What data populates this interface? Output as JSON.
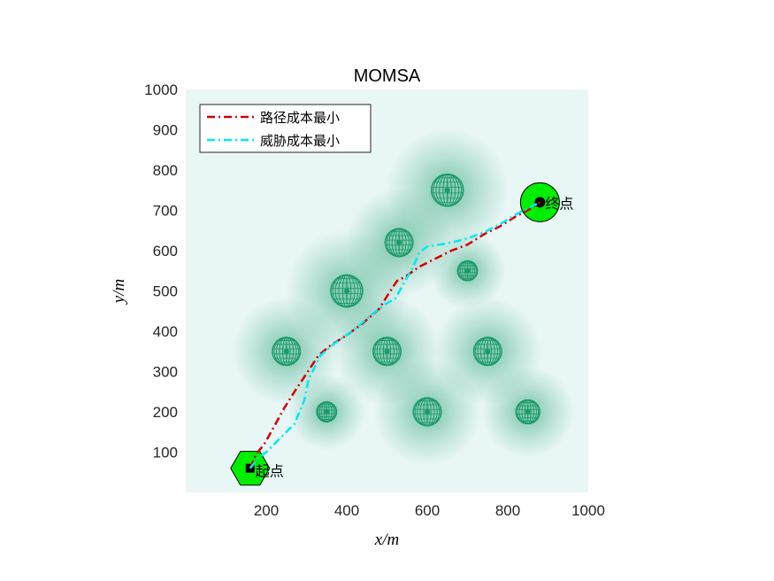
{
  "chart_data": {
    "type": "line",
    "title": "MOMSA",
    "xlabel": "x/m",
    "ylabel": "y/m",
    "xlim": [
      0,
      1000
    ],
    "ylim": [
      0,
      1000
    ],
    "xticks": [
      200,
      400,
      600,
      800,
      1000
    ],
    "yticks": [
      100,
      200,
      300,
      400,
      500,
      600,
      700,
      800,
      900,
      1000
    ],
    "legend_position": "top-left",
    "background_color": "#e8f6f6",
    "threat_color": "#1a9a68",
    "series": [
      {
        "name": "路径成本最小",
        "color": "#d40000",
        "style": "dash-dot",
        "x": [
          160,
          175,
          195,
          215,
          245,
          270,
          300,
          330,
          360,
          400,
          440,
          480,
          505,
          525,
          545,
          580,
          620,
          660,
          700,
          740,
          780,
          820,
          850,
          880
        ],
        "y": [
          60,
          95,
          120,
          155,
          210,
          250,
          295,
          340,
          365,
          390,
          420,
          455,
          495,
          525,
          535,
          560,
          580,
          600,
          615,
          640,
          660,
          685,
          700,
          720
        ]
      },
      {
        "name": "威胁成本最小",
        "color": "#00e8f0",
        "style": "dash-dot",
        "x": [
          160,
          180,
          200,
          230,
          270,
          295,
          305,
          335,
          370,
          420,
          460,
          500,
          520,
          545,
          565,
          580,
          600,
          630,
          660,
          700,
          740,
          780,
          820,
          860,
          880
        ],
        "y": [
          60,
          85,
          100,
          130,
          170,
          230,
          280,
          340,
          370,
          405,
          440,
          470,
          480,
          525,
          560,
          595,
          610,
          615,
          620,
          630,
          645,
          665,
          690,
          710,
          720
        ]
      }
    ],
    "threats": [
      {
        "x": 250,
        "y": 350,
        "r": 70
      },
      {
        "x": 350,
        "y": 200,
        "r": 50
      },
      {
        "x": 400,
        "y": 500,
        "r": 80
      },
      {
        "x": 500,
        "y": 350,
        "r": 70
      },
      {
        "x": 530,
        "y": 620,
        "r": 70
      },
      {
        "x": 600,
        "y": 200,
        "r": 70
      },
      {
        "x": 650,
        "y": 750,
        "r": 80
      },
      {
        "x": 700,
        "y": 550,
        "r": 50
      },
      {
        "x": 750,
        "y": 350,
        "r": 70
      },
      {
        "x": 850,
        "y": 200,
        "r": 60
      }
    ],
    "start": {
      "x": 160,
      "y": 60,
      "label": "起点"
    },
    "end": {
      "x": 880,
      "y": 720,
      "label": "终点"
    },
    "marker_color": "#00ee00"
  }
}
